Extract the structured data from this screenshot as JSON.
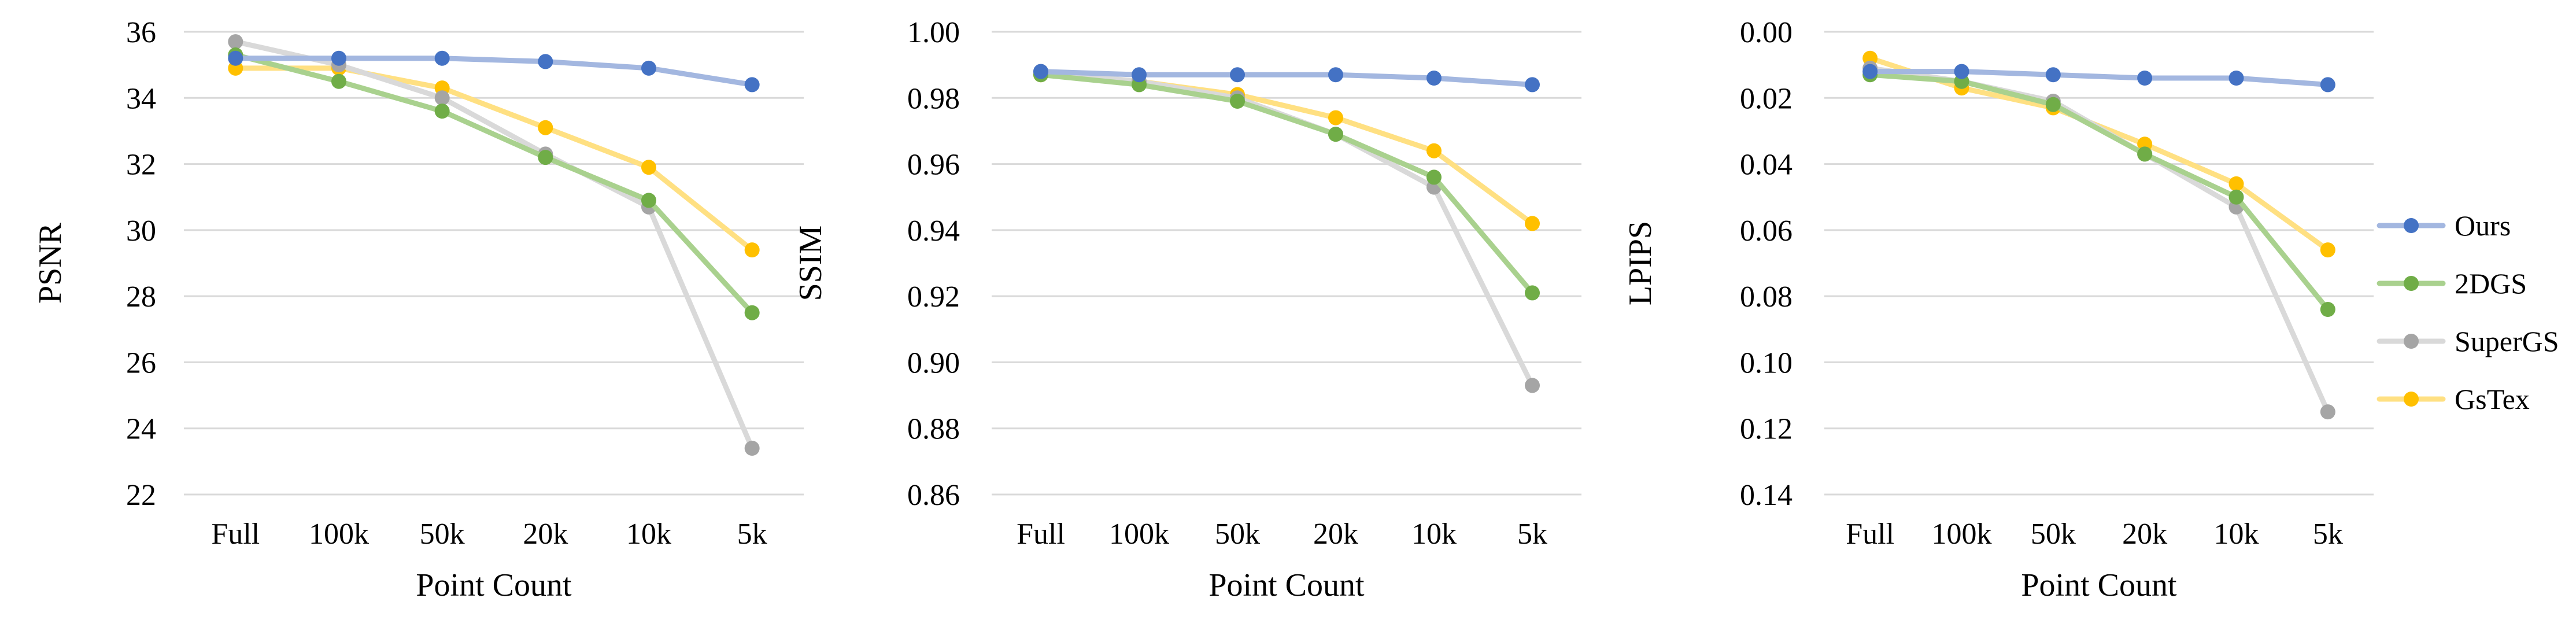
{
  "chart_data": [
    {
      "type": "line",
      "categories": [
        "Full",
        "100k",
        "50k",
        "20k",
        "10k",
        "5k"
      ],
      "xlabel": "Point Count",
      "ylabel": "PSNR",
      "ylim": [
        22,
        36
      ],
      "yticks": [
        "22",
        "24",
        "26",
        "28",
        "30",
        "32",
        "34",
        "36"
      ],
      "reverse_y": false,
      "grid": true,
      "series": [
        {
          "name": "Ours",
          "values": [
            35.2,
            35.2,
            35.2,
            35.1,
            34.9,
            34.4
          ]
        },
        {
          "name": "2DGS",
          "values": [
            35.3,
            34.5,
            33.6,
            32.2,
            30.9,
            27.5
          ]
        },
        {
          "name": "SuperGS",
          "values": [
            35.7,
            35.0,
            34.0,
            32.3,
            30.7,
            23.4
          ]
        },
        {
          "name": "GsTex",
          "values": [
            34.9,
            34.9,
            34.3,
            33.1,
            31.9,
            29.4
          ]
        }
      ]
    },
    {
      "type": "line",
      "categories": [
        "Full",
        "100k",
        "50k",
        "20k",
        "10k",
        "5k"
      ],
      "xlabel": "Point Count",
      "ylabel": "SSIM",
      "ylim": [
        0.86,
        1.0
      ],
      "yticks": [
        "0.86",
        "0.88",
        "0.90",
        "0.92",
        "0.94",
        "0.96",
        "0.98",
        "1.00"
      ],
      "reverse_y": false,
      "grid": true,
      "series": [
        {
          "name": "Ours",
          "values": [
            0.988,
            0.987,
            0.987,
            0.987,
            0.986,
            0.984
          ]
        },
        {
          "name": "2DGS",
          "values": [
            0.987,
            0.984,
            0.979,
            0.969,
            0.956,
            0.921
          ]
        },
        {
          "name": "SuperGS",
          "values": [
            0.988,
            0.985,
            0.98,
            0.969,
            0.953,
            0.893
          ]
        },
        {
          "name": "GsTex",
          "values": [
            0.987,
            0.985,
            0.981,
            0.974,
            0.964,
            0.942
          ]
        }
      ]
    },
    {
      "type": "line",
      "categories": [
        "Full",
        "100k",
        "50k",
        "20k",
        "10k",
        "5k"
      ],
      "xlabel": "Point Count",
      "ylabel": "LPIPS",
      "ylim": [
        0.0,
        0.14
      ],
      "yticks": [
        "0.00",
        "0.02",
        "0.04",
        "0.06",
        "0.08",
        "0.10",
        "0.12",
        "0.14"
      ],
      "reverse_y": true,
      "grid": true,
      "series": [
        {
          "name": "Ours",
          "values": [
            0.012,
            0.012,
            0.013,
            0.014,
            0.014,
            0.016
          ]
        },
        {
          "name": "2DGS",
          "values": [
            0.013,
            0.015,
            0.022,
            0.037,
            0.05,
            0.084
          ]
        },
        {
          "name": "SuperGS",
          "values": [
            0.011,
            0.015,
            0.021,
            0.037,
            0.053,
            0.115
          ]
        },
        {
          "name": "GsTex",
          "values": [
            0.008,
            0.017,
            0.023,
            0.034,
            0.046,
            0.066
          ]
        }
      ]
    }
  ],
  "legend": {
    "placement": "right",
    "items": [
      {
        "name": "Ours",
        "line_color": "#a3b7e0",
        "marker_color": "#4472c4"
      },
      {
        "name": "2DGS",
        "line_color": "#a9d18e",
        "marker_color": "#70ad47"
      },
      {
        "name": "SuperGS",
        "line_color": "#d9d9d9",
        "marker_color": "#a5a5a5"
      },
      {
        "name": "GsTex",
        "line_color": "#ffe082",
        "marker_color": "#ffc000"
      }
    ]
  }
}
